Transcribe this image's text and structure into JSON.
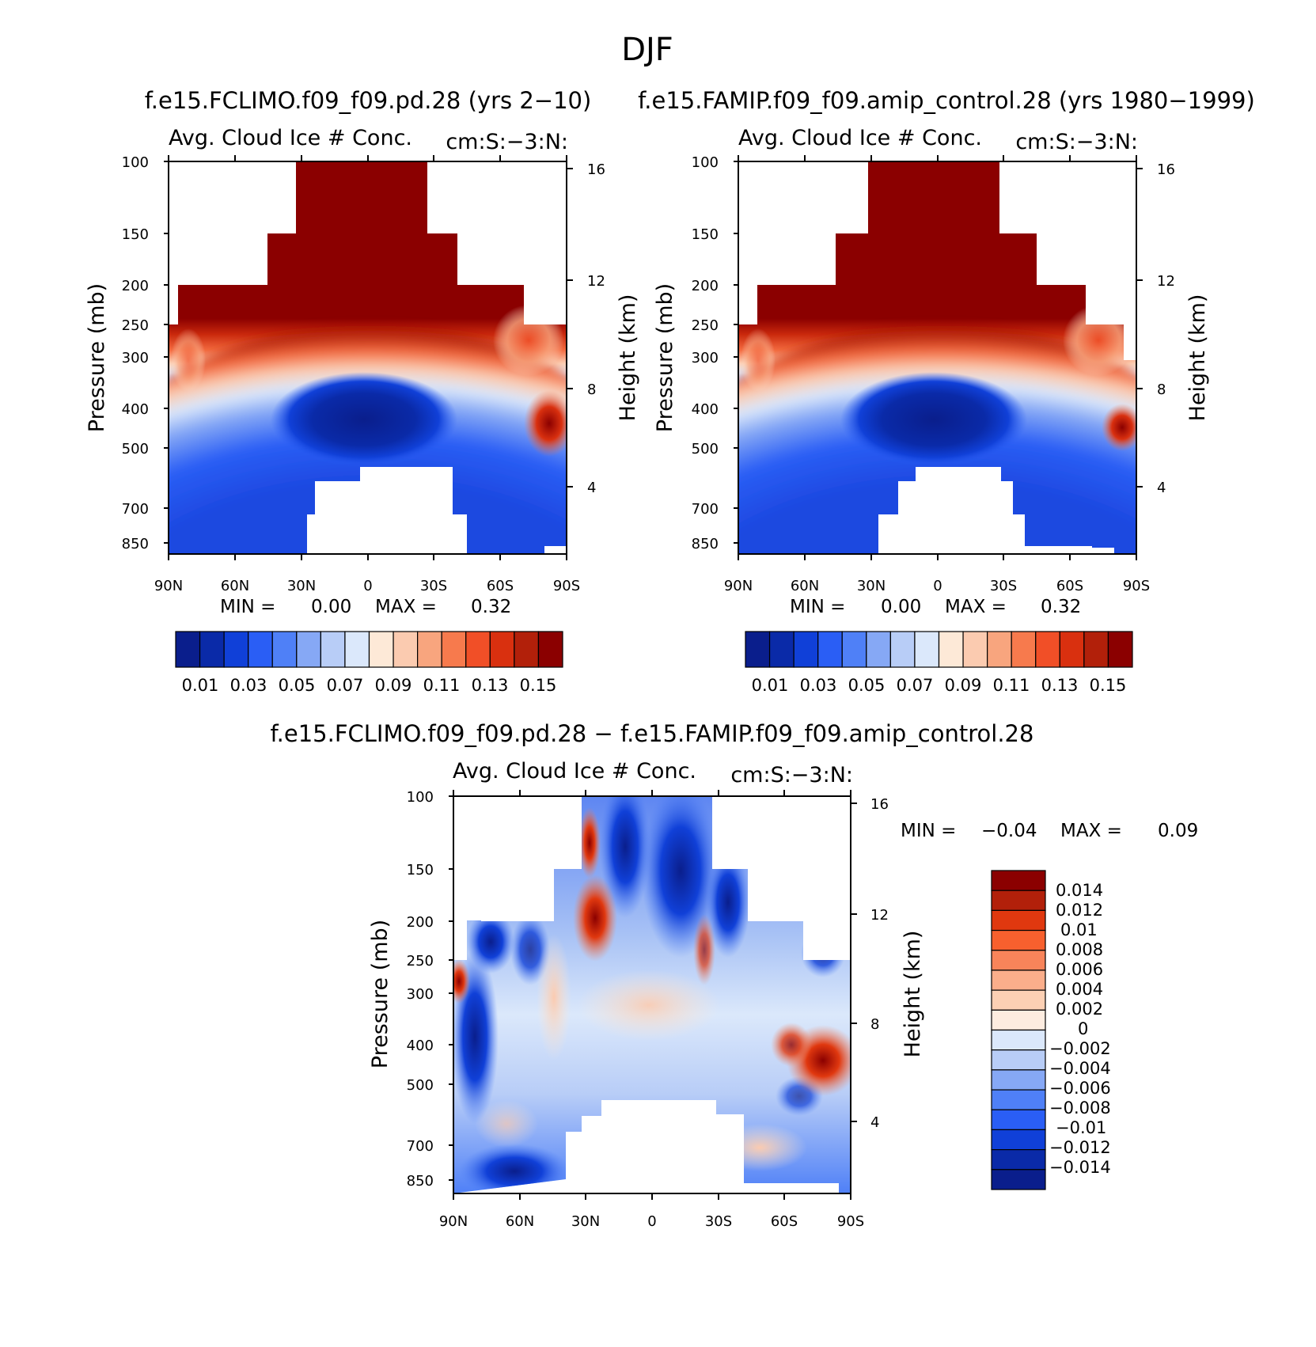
{
  "figure": {
    "title": "DJF",
    "stats_min_label": "MIN =",
    "stats_max_label": "MAX ="
  },
  "chart_data": [
    {
      "type": "heatmap",
      "title": "f.e15.FCLIMO.f09_f09.pd.28 (yrs 2-10)",
      "left_string": "Avg. Cloud Ice # Conc.",
      "right_string": "cm:S:-3:N:",
      "xlabel": "",
      "ylabel": "Pressure (mb)",
      "ylabel_right": "Height (km)",
      "x_ticks": [
        "90N",
        "60N",
        "30N",
        "0",
        "30S",
        "60S",
        "90S"
      ],
      "y_ticks": [
        100,
        150,
        200,
        250,
        300,
        400,
        500,
        700,
        850
      ],
      "y_right_ticks": [
        16,
        12,
        8,
        4
      ],
      "min": "0.00",
      "max": "0.32",
      "colorbar_labels": [
        "0.01",
        "0.03",
        "0.05",
        "0.07",
        "0.09",
        "0.11",
        "0.13",
        "0.15"
      ],
      "colors": [
        "#0a1e8c",
        "#0a2aa8",
        "#1040d8",
        "#2a5ef5",
        "#4f80f7",
        "#86a8f5",
        "#b8cdf7",
        "#dbe8fb",
        "#fde9d7",
        "#fbcbb0",
        "#f8a57e",
        "#f77a4d",
        "#f14f27",
        "#d9300f",
        "#b2200a",
        "#8b0000"
      ]
    },
    {
      "type": "heatmap",
      "title": "f.e15.FAMIP.f09_f09.amip_control.28 (yrs 1980-1999)",
      "left_string": "Avg. Cloud Ice # Conc.",
      "right_string": "cm:S:-3:N:",
      "xlabel": "",
      "ylabel": "Pressure (mb)",
      "ylabel_right": "Height (km)",
      "x_ticks": [
        "90N",
        "60N",
        "30N",
        "0",
        "30S",
        "60S",
        "90S"
      ],
      "y_ticks": [
        100,
        150,
        200,
        250,
        300,
        400,
        500,
        700,
        850
      ],
      "y_right_ticks": [
        16,
        12,
        8,
        4
      ],
      "min": "0.00",
      "max": "0.32",
      "colorbar_labels": [
        "0.01",
        "0.03",
        "0.05",
        "0.07",
        "0.09",
        "0.11",
        "0.13",
        "0.15"
      ],
      "colors": [
        "#0a1e8c",
        "#0a2aa8",
        "#1040d8",
        "#2a5ef5",
        "#4f80f7",
        "#86a8f5",
        "#b8cdf7",
        "#dbe8fb",
        "#fde9d7",
        "#fbcbb0",
        "#f8a57e",
        "#f77a4d",
        "#f14f27",
        "#d9300f",
        "#b2200a",
        "#8b0000"
      ]
    },
    {
      "type": "heatmap",
      "title": "f.e15.FCLIMO.f09_f09.pd.28 - f.e15.FAMIP.f09_f09.amip_control.28",
      "left_string": "Avg. Cloud Ice # Conc.",
      "right_string": "cm:S:-3:N:",
      "xlabel": "",
      "ylabel": "Pressure (mb)",
      "ylabel_right": "Height (km)",
      "x_ticks": [
        "90N",
        "60N",
        "30N",
        "0",
        "30S",
        "60S",
        "90S"
      ],
      "y_ticks": [
        100,
        150,
        200,
        250,
        300,
        400,
        500,
        700,
        850
      ],
      "y_right_ticks": [
        16,
        12,
        8,
        4
      ],
      "min": "-0.04",
      "max": "0.09",
      "colorbar_labels": [
        "0.014",
        "0.012",
        "0.01",
        "0.008",
        "0.006",
        "0.004",
        "0.002",
        "0",
        "-0.002",
        "-0.004",
        "-0.006",
        "-0.008",
        "-0.01",
        "-0.012",
        "-0.014"
      ],
      "colors": [
        "#8b0000",
        "#b2200a",
        "#e0380f",
        "#f7602e",
        "#f8845a",
        "#fbae8b",
        "#fcd0b4",
        "#fdece0",
        "#dbe8fb",
        "#b8cdf7",
        "#86a8f5",
        "#4f80f7",
        "#2a5ef5",
        "#1040d8",
        "#0a2aa8",
        "#0a1e8c"
      ]
    }
  ]
}
